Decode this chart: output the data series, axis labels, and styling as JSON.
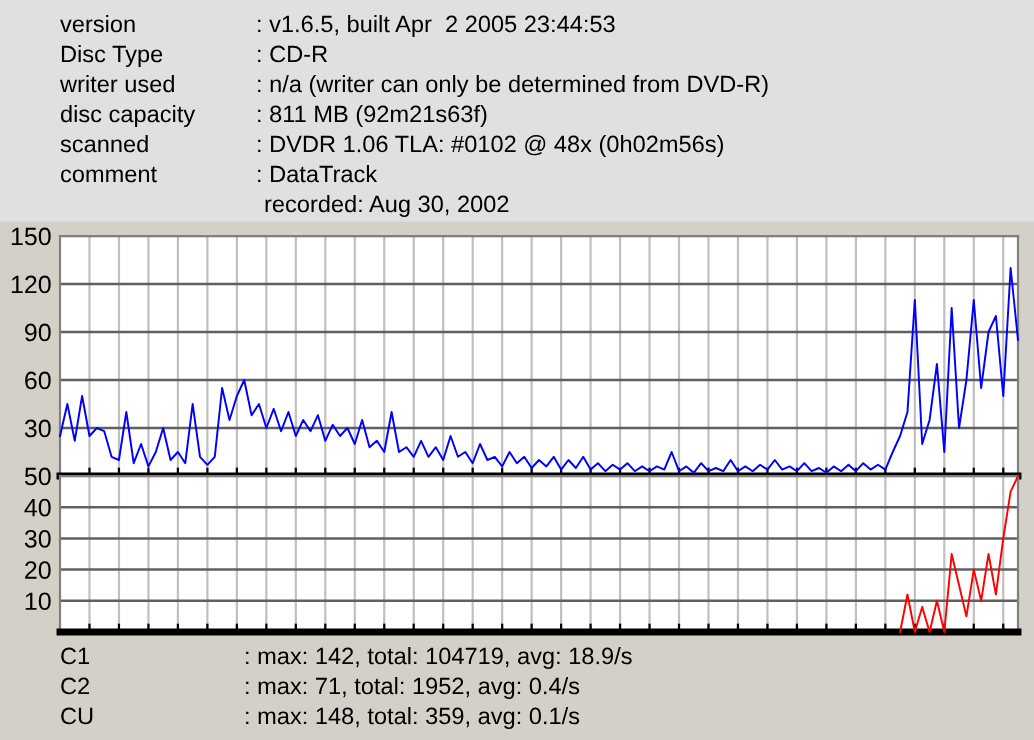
{
  "chart_data": [
    {
      "type": "line",
      "ylim": [
        0,
        150
      ],
      "yticks": [
        30,
        60,
        90,
        120,
        150
      ],
      "categories": [
        null,
        null,
        null,
        null,
        null,
        null,
        null,
        null,
        null,
        null,
        null,
        null,
        null,
        null,
        null,
        null,
        null,
        null,
        null,
        null,
        null,
        null,
        null,
        null,
        null,
        null,
        null,
        null,
        null,
        null,
        null,
        null,
        null,
        null,
        null,
        null,
        null,
        null,
        null,
        null,
        null,
        null,
        null,
        null,
        null,
        null,
        null,
        null,
        null,
        null,
        null,
        null,
        null,
        null,
        null,
        null,
        null,
        null,
        null,
        null,
        null,
        null,
        null,
        null,
        null,
        null,
        null,
        null,
        null,
        null,
        null,
        null,
        null,
        null,
        null,
        null,
        null,
        null,
        null,
        null,
        null,
        null,
        null,
        null,
        null,
        null,
        null,
        null,
        null,
        null,
        null,
        null,
        null,
        null,
        null,
        null,
        null,
        null,
        null,
        null,
        null,
        null,
        null,
        null,
        null,
        null,
        null,
        null,
        null,
        null,
        null,
        null,
        null,
        null,
        null,
        null,
        null,
        null,
        null,
        null,
        null,
        null,
        null,
        null,
        null,
        null,
        null,
        null,
        null,
        null,
        null
      ],
      "tick_labels": "y",
      "grid": true,
      "series": [
        {
          "color": "#0000ff",
          "values": [
            25,
            45,
            22,
            50,
            25,
            30,
            28,
            12,
            10,
            40,
            8,
            20,
            6,
            15,
            30,
            10,
            15,
            8,
            45,
            12,
            7,
            12,
            55,
            35,
            50,
            60,
            38,
            45,
            30,
            42,
            28,
            40,
            25,
            35,
            28,
            38,
            22,
            32,
            25,
            30,
            20,
            35,
            18,
            22,
            15,
            40,
            15,
            18,
            12,
            22,
            12,
            18,
            10,
            25,
            12,
            15,
            8,
            20,
            10,
            12,
            6,
            15,
            8,
            12,
            5,
            10,
            6,
            12,
            4,
            10,
            5,
            12,
            4,
            8,
            3,
            7,
            4,
            8,
            3,
            6,
            3,
            6,
            4,
            15,
            3,
            6,
            2,
            8,
            3,
            5,
            3,
            10,
            3,
            6,
            3,
            7,
            4,
            10,
            4,
            6,
            3,
            8,
            3,
            5,
            2,
            6,
            3,
            7,
            3,
            8,
            4,
            7,
            4,
            15,
            25,
            40,
            110,
            20,
            35,
            70,
            15,
            105,
            30,
            60,
            110,
            55,
            90,
            100,
            50,
            130,
            85
          ]
        }
      ],
      "annotations": [
        "version",
        ": v1.6.5, built Apr  2 2005 23:44:53",
        "Disc Type",
        ": CD-R",
        "writer used",
        ": n/a (writer can only be determined from DVD-R)",
        "disc capacity",
        ": 811 MB (92m21s63f)",
        "scanned",
        ": DVDR 1.06 TLA: #0102 @ 48x (0h02m56s)",
        "comment",
        ": DataTrack",
        "recorded: Aug 30, 2002"
      ]
    },
    {
      "type": "line",
      "ylim": [
        0,
        50
      ],
      "yticks": [
        10,
        20,
        30,
        40,
        50
      ],
      "categories": [
        null,
        null,
        null,
        null,
        null,
        null,
        null,
        null,
        null,
        null,
        null,
        null,
        null,
        null,
        null,
        null,
        null,
        null,
        null,
        null,
        null,
        null,
        null,
        null,
        null,
        null,
        null,
        null,
        null,
        null,
        null,
        null,
        null,
        null,
        null,
        null,
        null,
        null,
        null,
        null,
        null,
        null,
        null,
        null,
        null,
        null,
        null,
        null,
        null,
        null,
        null,
        null,
        null,
        null,
        null,
        null,
        null,
        null,
        null,
        null,
        null,
        null,
        null,
        null,
        null,
        null,
        null,
        null,
        null,
        null,
        null,
        null,
        null,
        null,
        null,
        null,
        null,
        null,
        null,
        null,
        null,
        null,
        null,
        null,
        null,
        null,
        null,
        null,
        null,
        null,
        null,
        null,
        null,
        null,
        null,
        null,
        null,
        null,
        null,
        null,
        null,
        null,
        null,
        null,
        null,
        null,
        null,
        null,
        null,
        null,
        null,
        null,
        null,
        null,
        null,
        null,
        null,
        null,
        null,
        null,
        null,
        null,
        null,
        null,
        null,
        null,
        null,
        null,
        null,
        null,
        null
      ],
      "tick_labels": "y",
      "grid": true,
      "series": [
        {
          "color": "#ff0000",
          "values": [
            null,
            null,
            null,
            null,
            null,
            null,
            null,
            null,
            null,
            null,
            null,
            null,
            null,
            null,
            null,
            null,
            null,
            null,
            null,
            null,
            null,
            null,
            null,
            null,
            null,
            null,
            null,
            null,
            null,
            null,
            null,
            null,
            null,
            null,
            null,
            null,
            null,
            null,
            null,
            null,
            null,
            null,
            null,
            null,
            null,
            null,
            null,
            null,
            null,
            null,
            null,
            null,
            null,
            null,
            null,
            null,
            null,
            null,
            null,
            null,
            null,
            null,
            null,
            null,
            null,
            null,
            null,
            null,
            null,
            null,
            null,
            null,
            null,
            null,
            null,
            null,
            null,
            null,
            null,
            null,
            null,
            null,
            null,
            null,
            null,
            null,
            null,
            null,
            null,
            null,
            null,
            null,
            null,
            null,
            null,
            null,
            null,
            null,
            null,
            null,
            null,
            null,
            null,
            null,
            null,
            null,
            null,
            null,
            null,
            null,
            null,
            null,
            null,
            null,
            0,
            12,
            0,
            8,
            0,
            10,
            0,
            25,
            15,
            5,
            20,
            10,
            25,
            12,
            30,
            45,
            50
          ]
        }
      ],
      "annotations": [
        "C1",
        ": max: 142, total: 104719, avg: 18.9/s",
        "C2",
        ": max: 71, total: 1952, avg: 0.4/s",
        "CU",
        ": max: 148, total: 359, avg: 0.1/s"
      ]
    }
  ]
}
